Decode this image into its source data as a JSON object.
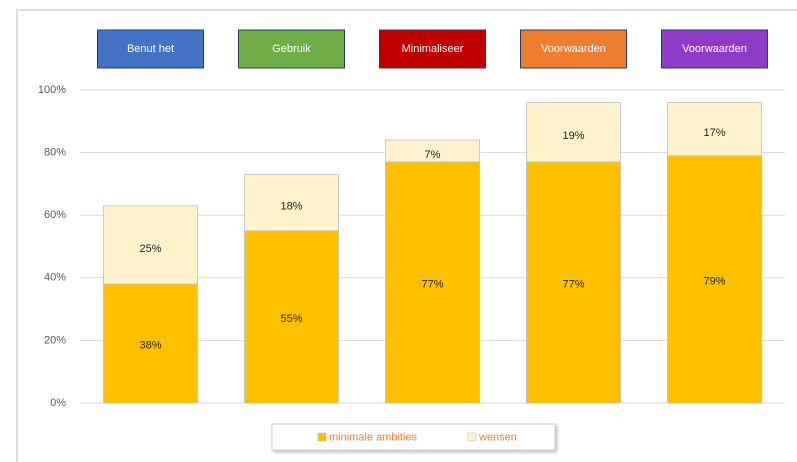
{
  "chart_data": {
    "type": "stacked_bar",
    "categories": [
      "Benut het",
      "Gebruik",
      "Minimaliseer",
      "Voorwaarden",
      "Voorwaarden"
    ],
    "category_colors": [
      "#4472c4",
      "#70ad47",
      "#c00000",
      "#ed7d31",
      "#8e3cc8"
    ],
    "series": [
      {
        "name": "minimale ambities",
        "color": "#ffc000",
        "values": [
          38,
          55,
          77,
          77,
          79
        ],
        "value_labels": [
          "38%",
          "55%",
          "77%",
          "77%",
          "79%"
        ]
      },
      {
        "name": "wensen",
        "color": "#fff2cc",
        "values": [
          25,
          18,
          7,
          19,
          17
        ],
        "value_labels": [
          "25%",
          "18%",
          "7%",
          "19%",
          "17%"
        ]
      }
    ],
    "ylim": [
      0,
      100
    ],
    "yticks": [
      {
        "value": 0,
        "label": "0%"
      },
      {
        "value": 20,
        "label": "20%"
      },
      {
        "value": 40,
        "label": "40%"
      },
      {
        "value": 60,
        "label": "60%"
      },
      {
        "value": 80,
        "label": "80%"
      },
      {
        "value": 100,
        "label": "100%"
      }
    ],
    "grid": true,
    "legend": "bottom"
  }
}
